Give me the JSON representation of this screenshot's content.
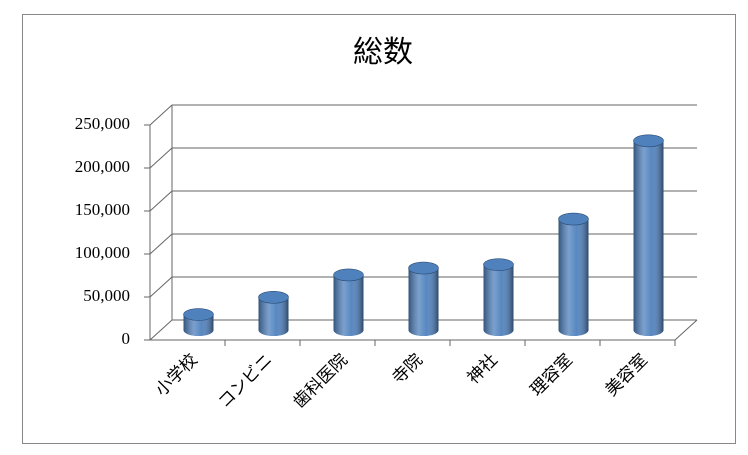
{
  "chart_data": {
    "type": "bar3d",
    "title": "総数",
    "categories": [
      "小学校",
      "コンビニ",
      "歯科医院",
      "寺院",
      "神社",
      "理容室",
      "美容室"
    ],
    "values": [
      18000,
      38000,
      64000,
      72000,
      76000,
      129000,
      220000
    ],
    "color": "#4f81bd",
    "ylim": [
      0,
      250000
    ],
    "yticks": [
      0,
      {
        "value": 50000,
        "label": "50,000"
      },
      {
        "value": 100000,
        "label": "100,000"
      },
      {
        "value": 150000,
        "label": "150,000"
      },
      {
        "value": 200000,
        "label": "200,000"
      },
      {
        "value": 250000,
        "label": "250,000"
      }
    ],
    "grid": true
  }
}
